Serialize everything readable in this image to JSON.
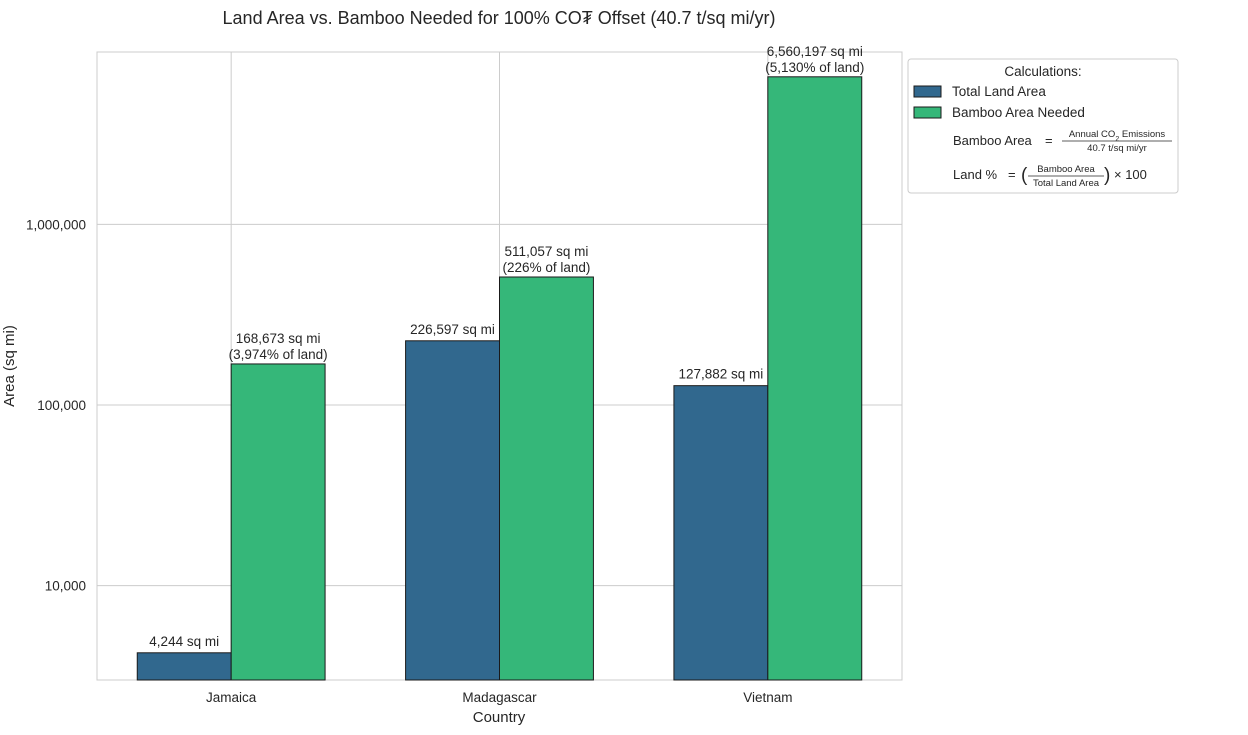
{
  "chart_data": {
    "type": "bar",
    "title": "Land Area vs. Bamboo Needed for 100% CO₮ Offset (40.7 t/sq mi/yr)",
    "xlabel": "Country",
    "ylabel": "Area (sq mi)",
    "yscale": "log",
    "ylim": [
      3000,
      9000000
    ],
    "yticks": [
      10000,
      100000,
      1000000
    ],
    "ytick_labels": [
      "10,000",
      "100,000",
      "1,000,000"
    ],
    "grid": true,
    "categories": [
      "Jamaica",
      "Madagascar",
      "Vietnam"
    ],
    "series": [
      {
        "name": "Total Land Area",
        "color": "#31688e",
        "values": [
          4244,
          226597,
          127882
        ],
        "labels": [
          "4,244 sq mi",
          "226,597 sq mi",
          "127,882 sq mi"
        ]
      },
      {
        "name": "Bamboo Area Needed",
        "color": "#35b779",
        "values": [
          168673,
          511057,
          6560197
        ],
        "labels": [
          "168,673 sq mi",
          "511,057 sq mi",
          "6,560,197 sq mi"
        ],
        "sublabels": [
          "(3,974% of land)",
          "(226% of land)",
          "(5,130% of land)"
        ]
      }
    ],
    "legend": {
      "placement": "outside-top-right",
      "title": "Calculations:",
      "formula1": {
        "lhs": "Bamboo Area",
        "numerator_a": "Annual CO",
        "numerator_sub": "2",
        "numerator_b": " Emissions",
        "denominator": "40.7 t/sq mi/yr"
      },
      "formula2": {
        "lhs": "Land %",
        "numerator": "Bamboo Area",
        "denominator": "Total Land Area",
        "suffix": "× 100"
      }
    }
  }
}
